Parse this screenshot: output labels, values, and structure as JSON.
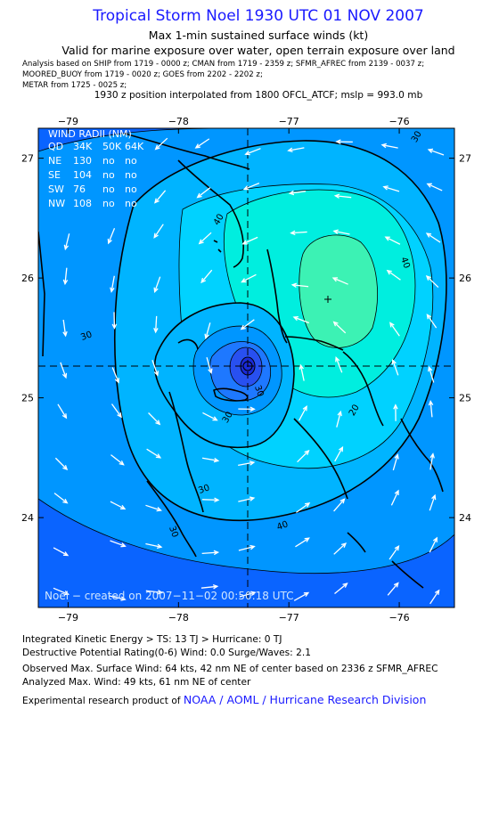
{
  "header": {
    "title": "Tropical Storm Noel 1930 UTC 01 NOV 2007",
    "subtitle1": "Max 1-min sustained surface winds (kt)",
    "subtitle2": "Valid for marine exposure over water, open terrain exposure over land",
    "analysis_line1": "Analysis based on   SHIP from 1719 - 0000 z;  CMAN from 1719 - 2359 z;  SFMR_AFREC from 2139 - 0037 z;",
    "analysis_line2": "MOORED_BUOY from 1719 - 0020 z;  GOES from 2202 - 2202 z;",
    "analysis_line3": "METAR from 1725 - 0025 z;",
    "position_note": "1930 z position interpolated from 1800 OFCL_ATCF; mslp = 993.0 mb"
  },
  "map": {
    "lon_labels": [
      "−79",
      "−78",
      "−77",
      "−76"
    ],
    "lat_labels": [
      "27",
      "26",
      "25",
      "24"
    ],
    "lon_range": [
      -79.27,
      -75.5
    ],
    "lat_range": [
      23.25,
      27.25
    ],
    "center": {
      "lon": -77.25,
      "lat": 25.25
    },
    "max_wind_marker": {
      "lon": -76.45,
      "lat": 25.82
    },
    "contour_labels": [
      "40",
      "40",
      "30",
      "30",
      "30",
      "40",
      "20",
      "30",
      "30",
      "30"
    ],
    "colors": {
      "background": "#0a64ff",
      "band_25": "#0096ff",
      "band_30": "#00b4ff",
      "band_35": "#00d2ff",
      "band_40": "#00eedf",
      "band_45": "#3cf2b4",
      "inner_20": "#0096ff",
      "inner_15": "#1e78ff",
      "inner_10": "#2850f0",
      "inner_5": "#1a2ad8",
      "coast": "#000000",
      "arrow": "#ffffff"
    },
    "credit": "Noel − created on 2007−11−02 00:50:18 UTC"
  },
  "wind_radii": {
    "title": "WIND RADII (NM)",
    "header": [
      "QD",
      "34K",
      "50K",
      "64K"
    ],
    "rows": [
      [
        "NE",
        "130",
        "no",
        "no"
      ],
      [
        "SE",
        "104",
        "no",
        "no"
      ],
      [
        "SW",
        "76",
        "no",
        "no"
      ],
      [
        "NW",
        "108",
        "no",
        "no"
      ]
    ]
  },
  "footer": {
    "ike": "Integrated Kinetic Energy > TS: 13 TJ   > Hurricane: 0 TJ",
    "dpr": "Destructive Potential Rating(0-6)   Wind: 0.0 Surge/Waves: 2.1",
    "observed": "Observed Max. Surface Wind: 64 kts, 42 nm NE of center based on 2336 z SFMR_AFREC",
    "analyzed": "Analyzed Max. Wind: 49 kts, 61 nm NE of center",
    "product_prefix": "Experimental research product of ",
    "product_org": "NOAA / AOML / Hurricane Research Division"
  }
}
